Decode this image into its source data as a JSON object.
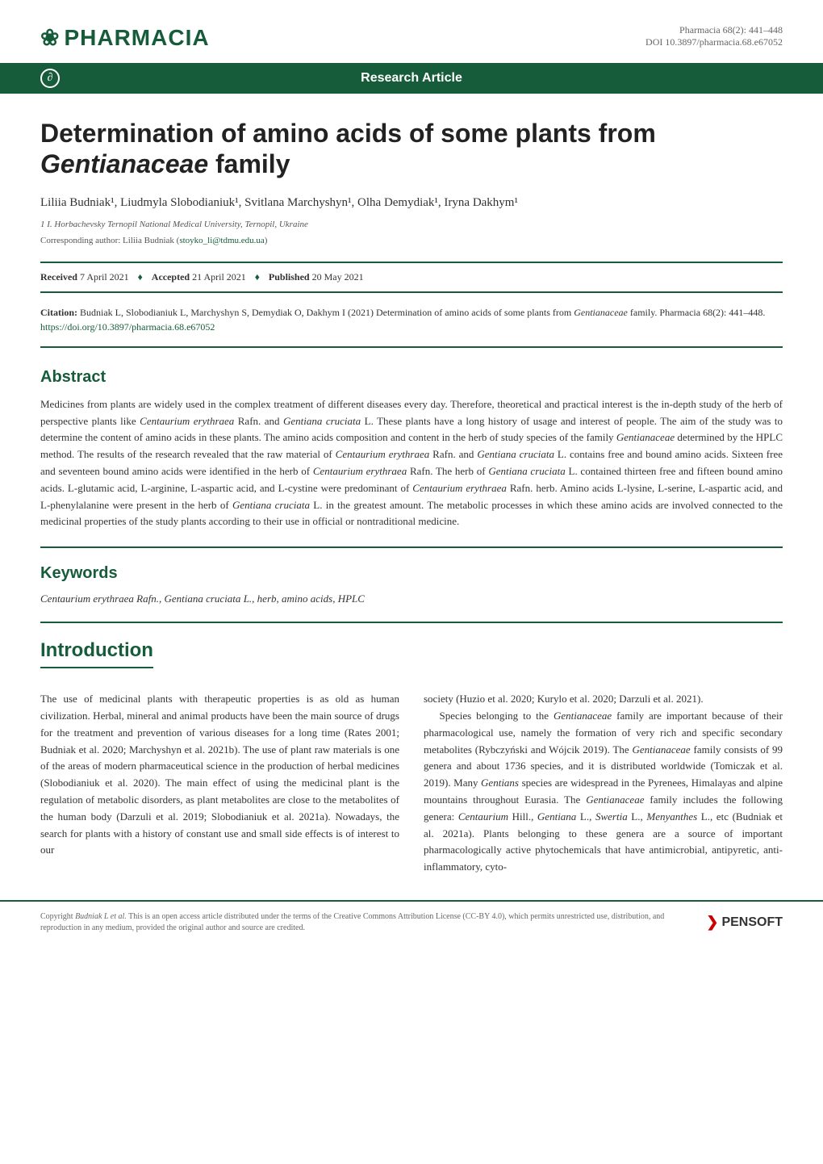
{
  "header": {
    "journal_logo": "PHARMACIA",
    "journal_logo_prefix": "❀",
    "citation_line1": "Pharmacia 68(2): 441–448",
    "doi_line": "DOI 10.3897/pharmacia.68.e67052"
  },
  "green_bar": {
    "open_access_symbol": "∂",
    "article_type": "Research Article"
  },
  "article": {
    "title": "Determination of amino acids of some plants from Gentianaceae family",
    "title_html": "Determination of amino acids of some plants from <em>Gentianaceae</em> family",
    "authors": "Liliia Budniak¹, Liudmyla Slobodianiuk¹, Svitlana Marchyshyn¹, Olha Demydiak¹, Iryna Dakhym¹",
    "affiliation": "1  I. Horbachevsky Ternopil National Medical University, Ternopil, Ukraine",
    "corresponding_label": "Corresponding author: Liliia Budniak (",
    "corresponding_email": "stoyko_li@tdmu.edu.ua",
    "corresponding_close": ")"
  },
  "dates": {
    "received_label": "Received",
    "received_date": "7 April 2021",
    "accepted_label": "Accepted",
    "accepted_date": "21 April 2021",
    "published_label": "Published",
    "published_date": "20 May 2021"
  },
  "citation": {
    "label": "Citation:",
    "text": " Budniak L, Slobodianiuk L, Marchyshyn S, Demydiak O, Dakhym I (2021) Determination of amino acids of some plants from Gentianaceae family. Pharmacia 68(2): 441–448. ",
    "link": "https://doi.org/10.3897/pharmacia.68.e67052"
  },
  "sections": {
    "abstract_heading": "Abstract",
    "abstract_text": "Medicines from plants are widely used in the complex treatment of different diseases every day. Therefore, theoretical and practical interest is the in-depth study of the herb of perspective plants like Centaurium erythraea Rafn. and Gentiana cruciata L. These plants have a long history of usage and interest of people. The aim of the study was to determine the content of amino acids in these plants. The amino acids composition and content in the herb of study species of the family Gentianaceae determined by the HPLC method. The results of the research revealed that the raw material of Centaurium erythraea Rafn. and Gentiana cruciata L. contains free and bound amino acids. Sixteen free and seventeen bound amino acids were identified in the herb of Centaurium erythraea Rafn. The herb of Gentiana cruciata L. contained thirteen free and fifteen bound amino acids. L-glutamic acid, L-arginine, L-aspartic acid, and L-cystine were predominant of Centaurium erythraea Rafn. herb. Amino acids L-lysine, L-serine, L-aspartic acid, and L-phenylalanine were present in the herb of Gentiana cruciata L. in the greatest amount. The metabolic processes in which these amino acids are involved connected to the medicinal properties of the study plants according to their use in official or nontraditional medicine.",
    "keywords_heading": "Keywords",
    "keywords_text": "Centaurium erythraea Rafn., Gentiana cruciata L., herb, amino acids, HPLC",
    "intro_heading": "Introduction",
    "intro_col1": "The use of medicinal plants with therapeutic properties is as old as human civilization. Herbal, mineral and animal products have been the main source of drugs for the treatment and prevention of various diseases for a long time (Rates 2001; Budniak et al. 2020; Marchyshyn et al. 2021b). The use of plant raw materials is one of the areas of modern pharmaceutical science in the production of herbal medicines (Slobodianiuk et al. 2020). The main effect of using the medicinal plant is the regulation of metabolic disorders, as plant metabolites are close to the metabolites of the human body (Darzuli et al. 2019; Slobodianiuk et al. 2021a). Nowadays, the search for plants with a history of constant use and small side effects is of interest to our",
    "intro_col2_p1": "society (Huzio et al. 2020; Kurylo et al. 2020; Darzuli et al. 2021).",
    "intro_col2_p2": "Species belonging to the Gentianaceae family are important because of their pharmacological use, namely the formation of very rich and specific secondary metabolites (Rybczyński and Wójcik 2019). The Gentianaceae family consists of 99 genera and about 1736 species, and it is distributed worldwide (Tomiczak et al. 2019). Many Gentians species are widespread in the Pyrenees, Himalayas and alpine mountains throughout Eurasia. The Gentianaceae family includes the following genera: Centaurium Hill., Gentiana L., Swertia L., Menyanthes L., etc (Budniak et al. 2021a). Plants belonging to these genera are a source of important pharmacologically active phytochemicals that have antimicrobial, antipyretic, anti-inflammatory, cyto-"
  },
  "footer": {
    "copyright_text": "Copyright Budniak L et al. This is an open access article distributed under the terms of the Creative Commons Attribution License (CC-BY 4.0), which permits unrestricted use, distribution, and reproduction in any medium, provided the original author and source are credited.",
    "publisher_logo": "PENSOFT",
    "publisher_icon": "❯"
  },
  "colors": {
    "primary_green": "#175c3a",
    "text_dark": "#333333",
    "text_gray": "#666666",
    "background": "#ffffff",
    "pensoft_red": "#cc0000"
  },
  "typography": {
    "title_fontsize": 32,
    "section_heading_fontsize": 20,
    "intro_heading_fontsize": 24,
    "body_fontsize": 13,
    "small_fontsize": 11,
    "footer_fontsize": 10,
    "logo_fontsize": 28
  }
}
